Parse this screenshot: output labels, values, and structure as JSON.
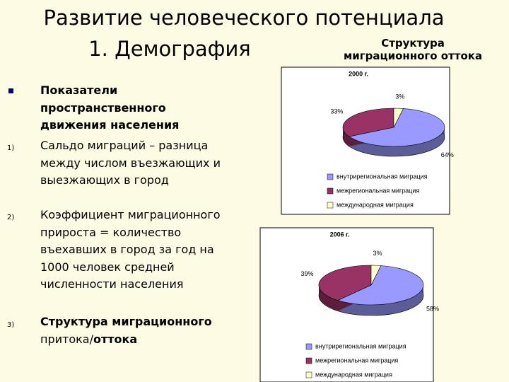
{
  "title": {
    "line1": "Развитие человеческого потенциала",
    "line2": "1. Демография"
  },
  "subtitle": [
    "Структура",
    "миграционного оттока"
  ],
  "items": [
    {
      "text": "Показатели пространственного движения населения"
    },
    {
      "marker": "1)",
      "text": "Сальдо миграций – разница между числом въезжающих и выезжающих в город"
    },
    {
      "marker": "2)",
      "text": "Коэффициент миграционного прироста = количество въехавших в город за год на 1000 человек средней численности населения"
    },
    {
      "marker": "3)",
      "parts": [
        "Структура миграционного",
        "притока/",
        "оттока"
      ]
    }
  ],
  "chart_data": [
    {
      "type": "pie",
      "title": "2000 г.",
      "categories": [
        "внутрирегиональная миграция",
        "межрегиональная миграция",
        "международная миграция"
      ],
      "values": [
        64,
        33,
        3
      ],
      "value_labels": [
        "64%",
        "33%",
        "3%"
      ],
      "colors": [
        "#9999ff",
        "#993366",
        "#ffffcc"
      ]
    },
    {
      "type": "pie",
      "title": "2006 г.",
      "categories": [
        "внутрирегиональная миграция",
        "межрегиональная миграция",
        "международная миграция"
      ],
      "values": [
        58,
        39,
        3
      ],
      "value_labels": [
        "58%",
        "39%",
        "3%"
      ],
      "colors": [
        "#9999ff",
        "#993366",
        "#ffffcc"
      ]
    }
  ]
}
